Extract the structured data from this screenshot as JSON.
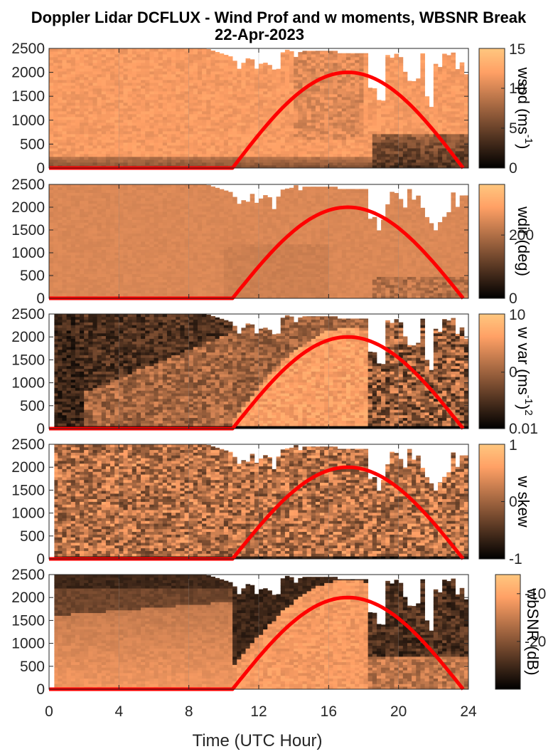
{
  "title_line1": "Doppler Lidar DCFLUX - Wind Prof and w moments, WBSNR Break",
  "title_line2": "22-Apr-2023",
  "colors": {
    "copper_dark": "#000000",
    "copper_light": "#ffc77f",
    "solar_curve": "#ff0000"
  },
  "chart_data": [
    {
      "type": "heatmap",
      "colorbar_label": "wspd (ms",
      "colorbar_label_sup": "-1",
      "colorbar_label_end": ")",
      "colorbar_ticks": [
        "15",
        "10",
        "5",
        "0"
      ],
      "colorbar_tick_values": [
        15,
        10,
        5,
        0
      ],
      "clim": [
        0,
        15
      ],
      "xlim": [
        0,
        24
      ],
      "ylim": [
        0,
        2500
      ],
      "y_ticks": [
        "0",
        "500",
        "1000",
        "1500",
        "2000",
        "2500"
      ],
      "solar_curve": {
        "start_hour": 10.5,
        "peak_hour": 17.1,
        "end_hour": 23.7,
        "peak_value": 2000
      }
    },
    {
      "type": "heatmap",
      "colorbar_label": "wdir (deg)",
      "colorbar_ticks": [
        "200",
        "0"
      ],
      "colorbar_tick_values": [
        200,
        0
      ],
      "clim": [
        0,
        360
      ],
      "xlim": [
        0,
        24
      ],
      "ylim": [
        0,
        2500
      ],
      "y_ticks": [
        "0",
        "500",
        "1000",
        "1500",
        "2000",
        "2500"
      ],
      "solar_curve": {
        "start_hour": 10.5,
        "peak_hour": 17.1,
        "end_hour": 23.7,
        "peak_value": 2000
      }
    },
    {
      "type": "heatmap",
      "colorbar_label": "w var (ms",
      "colorbar_label_sup": "-1",
      "colorbar_label_end": ")",
      "colorbar_label_sup2": "2",
      "colorbar_ticks": [
        "10",
        "0",
        "0.01"
      ],
      "colorbar_tick_values": [
        10,
        0.3,
        0.01
      ],
      "clim": [
        0.01,
        10
      ],
      "log_scale": true,
      "xlim": [
        0,
        24
      ],
      "ylim": [
        0,
        2500
      ],
      "y_ticks": [
        "0",
        "500",
        "1000",
        "1500",
        "2000",
        "2500"
      ],
      "solar_curve": {
        "start_hour": 10.5,
        "peak_hour": 17.1,
        "end_hour": 23.7,
        "peak_value": 2000
      }
    },
    {
      "type": "heatmap",
      "colorbar_label": "w skew",
      "colorbar_ticks": [
        "1",
        "0",
        "-1"
      ],
      "colorbar_tick_values": [
        1,
        0,
        -1
      ],
      "clim": [
        -1,
        1
      ],
      "xlim": [
        0,
        24
      ],
      "ylim": [
        0,
        2500
      ],
      "y_ticks": [
        "0",
        "500",
        "1000",
        "1500",
        "2000",
        "2500"
      ],
      "solar_curve": {
        "start_hour": 10.5,
        "peak_hour": 17.1,
        "end_hour": 23.7,
        "peak_value": 2000
      }
    },
    {
      "type": "heatmap",
      "colorbar_label": "wbSNR (dB)",
      "colorbar_ticks": [
        "-10",
        "-20"
      ],
      "colorbar_tick_values": [
        -10,
        -20
      ],
      "clim": [
        -30,
        -6
      ],
      "xlim": [
        0,
        24
      ],
      "ylim": [
        0,
        2500
      ],
      "y_ticks": [
        "0",
        "500",
        "1000",
        "1500",
        "2000",
        "2500"
      ],
      "solar_curve": {
        "start_hour": 10.5,
        "peak_hour": 17.1,
        "end_hour": 23.7,
        "peak_value": 2000
      }
    }
  ],
  "x_axis": {
    "label": "Time (UTC Hour)",
    "ticks": [
      "0",
      "4",
      "8",
      "12",
      "16",
      "20",
      "24"
    ],
    "tick_values": [
      0,
      4,
      8,
      12,
      16,
      20,
      24
    ]
  }
}
